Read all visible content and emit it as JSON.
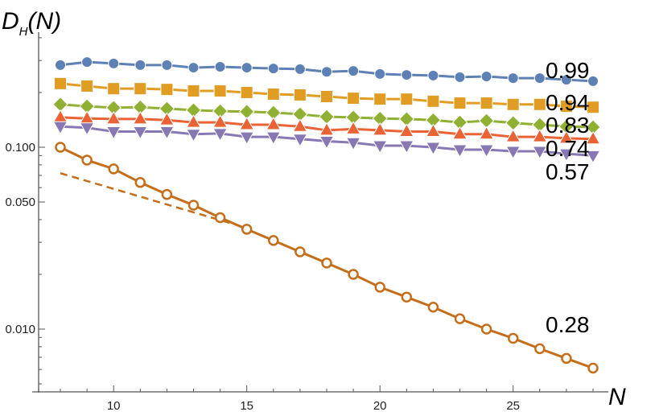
{
  "chart_data": {
    "type": "line",
    "ylabel_main": "D",
    "ylabel_sub": "H",
    "ylabel_arg": "(N)",
    "xlabel": "N",
    "yscale": "log",
    "xlim": [
      7.2,
      28.5
    ],
    "ylim": [
      0.0045,
      0.43
    ],
    "grid": false,
    "x_ticks": [
      10,
      15,
      20,
      25
    ],
    "y_ticks": [
      {
        "value": 0.1,
        "label": "0.100"
      },
      {
        "value": 0.05,
        "label": "0.050"
      },
      {
        "value": 0.01,
        "label": "0.010"
      }
    ],
    "x": [
      8,
      9,
      10,
      11,
      12,
      13,
      14,
      15,
      16,
      17,
      18,
      19,
      20,
      21,
      22,
      23,
      24,
      25,
      26,
      27,
      28
    ],
    "series": [
      {
        "label": "0.99",
        "color": "#5E81B5",
        "marker": "circle",
        "values": [
          0.283,
          0.294,
          0.289,
          0.283,
          0.283,
          0.274,
          0.277,
          0.274,
          0.271,
          0.269,
          0.26,
          0.263,
          0.253,
          0.25,
          0.248,
          0.243,
          0.245,
          0.24,
          0.24,
          0.235,
          0.231
        ]
      },
      {
        "label": "0.94",
        "color": "#E19C24",
        "marker": "square",
        "values": [
          0.224,
          0.217,
          0.21,
          0.21,
          0.208,
          0.204,
          0.204,
          0.2,
          0.196,
          0.194,
          0.19,
          0.186,
          0.184,
          0.184,
          0.179,
          0.175,
          0.175,
          0.172,
          0.172,
          0.168,
          0.166
        ]
      },
      {
        "label": "0.83",
        "color": "#8FB032",
        "marker": "diamond",
        "values": [
          0.172,
          0.168,
          0.165,
          0.166,
          0.163,
          0.16,
          0.158,
          0.157,
          0.155,
          0.152,
          0.147,
          0.146,
          0.144,
          0.143,
          0.141,
          0.137,
          0.14,
          0.136,
          0.133,
          0.13,
          0.129
        ]
      },
      {
        "label": "0.74",
        "color": "#EB6235",
        "marker": "triangle-up",
        "values": [
          0.146,
          0.144,
          0.143,
          0.143,
          0.141,
          0.137,
          0.137,
          0.133,
          0.133,
          0.13,
          0.124,
          0.126,
          0.124,
          0.122,
          0.122,
          0.118,
          0.118,
          0.114,
          0.114,
          0.112,
          0.111
        ]
      },
      {
        "label": "0.57",
        "color": "#8778B3",
        "marker": "triangle-down",
        "values": [
          0.13,
          0.128,
          0.122,
          0.122,
          0.122,
          0.118,
          0.119,
          0.114,
          0.114,
          0.111,
          0.108,
          0.106,
          0.102,
          0.102,
          0.1,
          0.097,
          0.097,
          0.095,
          0.095,
          0.092,
          0.09
        ]
      },
      {
        "label": "0.28",
        "color": "#C56E1A",
        "marker": "open-circle",
        "values": [
          0.1,
          0.085,
          0.076,
          0.064,
          0.055,
          0.048,
          0.041,
          0.0354,
          0.0307,
          0.0266,
          0.0231,
          0.02,
          0.017,
          0.015,
          0.0132,
          0.0114,
          0.01,
          0.0089,
          0.0078,
          0.0069,
          0.0061
        ]
      }
    ],
    "fit_line": {
      "color": "#C56E1A",
      "style": "dashed",
      "x": [
        8,
        15
      ],
      "values": [
        0.072,
        0.036
      ]
    }
  }
}
